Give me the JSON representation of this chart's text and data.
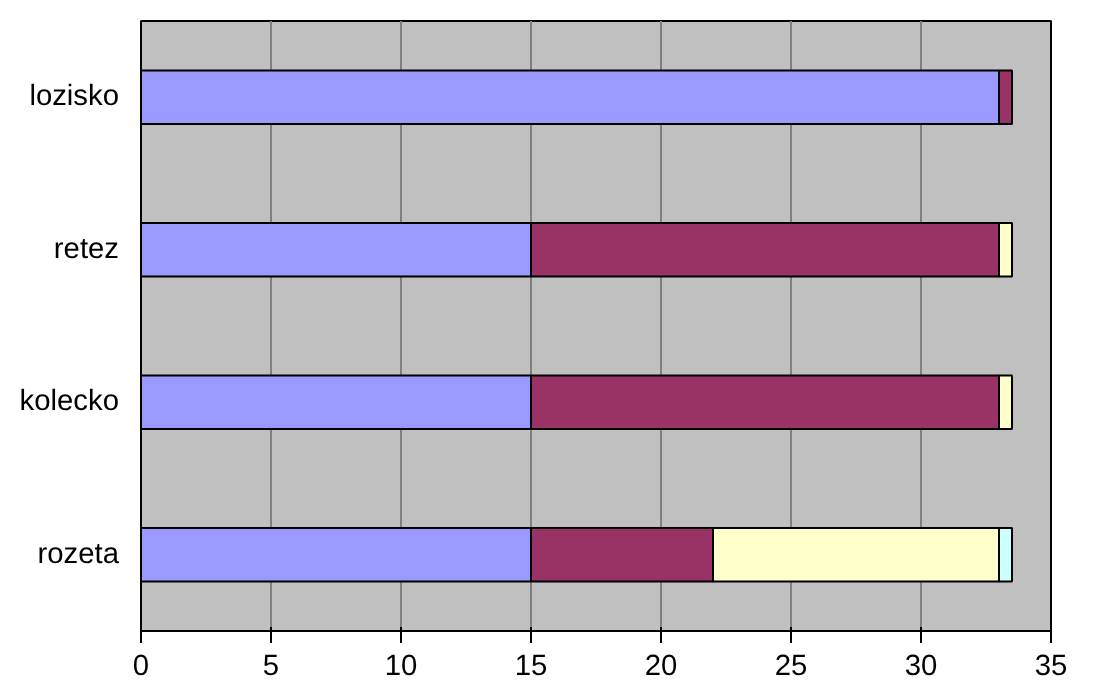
{
  "chart_data": {
    "type": "bar",
    "orientation": "horizontal",
    "stacked": true,
    "categories": [
      "lozisko",
      "retez",
      "kolecko",
      "rozeta"
    ],
    "series": [
      {
        "color": "#9999ff",
        "values": [
          33,
          15,
          15,
          15
        ]
      },
      {
        "color": "#993366",
        "values": [
          0.5,
          18,
          18,
          7
        ]
      },
      {
        "color": "#ffffcc",
        "values": [
          0,
          0.5,
          0.5,
          11
        ]
      },
      {
        "color": "#ccffff",
        "values": [
          0,
          0,
          0,
          0.5
        ]
      }
    ],
    "xlim": [
      0,
      35
    ],
    "xticks": [
      0,
      5,
      10,
      15,
      20,
      25,
      30,
      35
    ],
    "grid": "x"
  }
}
